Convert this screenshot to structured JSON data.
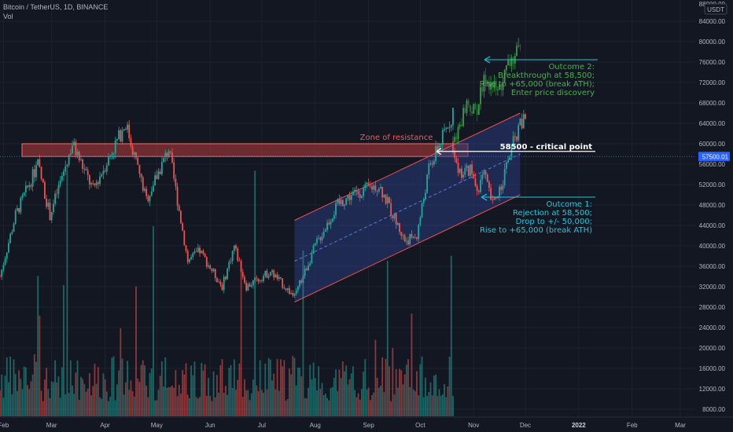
{
  "header": {
    "symbol": "Bitcoin / TetherUS, 1D, BINANCE",
    "vol_label": "Vol",
    "currency": "USDT",
    "top_tick_partial": "88000.00"
  },
  "chart_data": {
    "type": "candlestick",
    "price_axis": {
      "ticks": [
        8000,
        12000,
        16000,
        20000,
        24000,
        28000,
        32000,
        36000,
        40000,
        44000,
        48000,
        52000,
        56000,
        60000,
        64000,
        68000,
        72000,
        76000,
        80000,
        84000
      ],
      "labels": [
        "8000.00",
        "12000.00",
        "16000.00",
        "20000.00",
        "24000.00",
        "28000.00",
        "32000.00",
        "36000.00",
        "40000.00",
        "44000.00",
        "48000.00",
        "52000.00",
        "56000.00",
        "60000.00",
        "64000.00",
        "68000.00",
        "72000.00",
        "76000.00",
        "80000.00",
        "84000.00"
      ],
      "current_price": 57500,
      "current_label": "57500.01"
    },
    "time_axis": {
      "labels": [
        "Feb",
        "Mar",
        "Apr",
        "May",
        "Jun",
        "Jul",
        "Aug",
        "Sep",
        "Oct",
        "Nov",
        "Dec",
        "2022",
        "Feb",
        "Mar"
      ],
      "bold": [
        "2022"
      ]
    },
    "colors": {
      "up": "#26a69a",
      "down": "#ef5350",
      "proj_up": "#3b9a4a",
      "proj_down": "#2e6b3a",
      "channel_fill": "#2a3a7a",
      "channel_line": "#f05050",
      "outcome1": "#26c6da",
      "outcome2": "#4caf50",
      "zone_fill": "#b83a3a",
      "zone_text": "#ff5252"
    },
    "annotations": {
      "zone": "Zone of resistance",
      "critical": "58500 - critical point",
      "outcome1": [
        "Outcome 1:",
        "Rejection at 58,500;",
        "Drop to +/- 50,000;",
        "Rise to +65,000 (break ATH)"
      ],
      "outcome2": [
        "Outcome 2:",
        "Breakthrough at 58,500;",
        "Rise to +65,000 (break ATH);",
        "Enter price discovery"
      ]
    },
    "key_levels": {
      "resistance_low": 57500,
      "resistance_high": 60000,
      "critical": 58500
    },
    "price_path": [
      [
        "2021-01-30",
        34000
      ],
      [
        "2021-02-08",
        46000
      ],
      [
        "2021-02-21",
        56000
      ],
      [
        "2021-02-28",
        46000
      ],
      [
        "2021-03-13",
        60000
      ],
      [
        "2021-03-25",
        51000
      ],
      [
        "2021-04-13",
        64000
      ],
      [
        "2021-04-25",
        49000
      ],
      [
        "2021-05-08",
        59000
      ],
      [
        "2021-05-19",
        37000
      ],
      [
        "2021-05-26",
        39000
      ],
      [
        "2021-06-08",
        32000
      ],
      [
        "2021-06-15",
        40000
      ],
      [
        "2021-06-22",
        32000
      ],
      [
        "2021-07-06",
        35000
      ],
      [
        "2021-07-20",
        30000
      ],
      [
        "2021-08-01",
        40000
      ],
      [
        "2021-08-14",
        48000
      ],
      [
        "2021-08-22",
        50000
      ],
      [
        "2021-09-07",
        52000
      ],
      [
        "2021-09-22",
        41000
      ],
      [
        "2021-09-29",
        42000
      ],
      [
        "2021-10-06",
        55000
      ],
      [
        "2021-10-15",
        62000
      ],
      [
        "2021-10-20",
        66000
      ]
    ],
    "outcome1_path": [
      [
        "2021-10-20",
        60000
      ],
      [
        "2021-10-24",
        54000
      ],
      [
        "2021-10-30",
        55000
      ],
      [
        "2021-11-03",
        51000
      ],
      [
        "2021-11-07",
        54000
      ],
      [
        "2021-11-12",
        48000
      ],
      [
        "2021-11-17",
        52000
      ],
      [
        "2021-11-22",
        58000
      ],
      [
        "2021-11-27",
        63000
      ],
      [
        "2021-12-01",
        65000
      ]
    ],
    "outcome2_path": [
      [
        "2021-10-20",
        60000
      ],
      [
        "2021-10-28",
        68000
      ],
      [
        "2021-11-02",
        66000
      ],
      [
        "2021-11-08",
        73000
      ],
      [
        "2021-11-15",
        70000
      ],
      [
        "2021-11-22",
        76000
      ],
      [
        "2021-11-28",
        78000
      ]
    ],
    "channel": {
      "upper": [
        [
          "2021-07-20",
          45000
        ],
        [
          "2021-11-28",
          66000
        ]
      ],
      "lower": [
        [
          "2021-07-20",
          29000
        ],
        [
          "2021-11-28",
          50000
        ]
      ],
      "mid": [
        [
          "2021-07-20",
          37000
        ],
        [
          "2021-11-28",
          58000
        ]
      ]
    },
    "volume_axis_max": 60000
  }
}
